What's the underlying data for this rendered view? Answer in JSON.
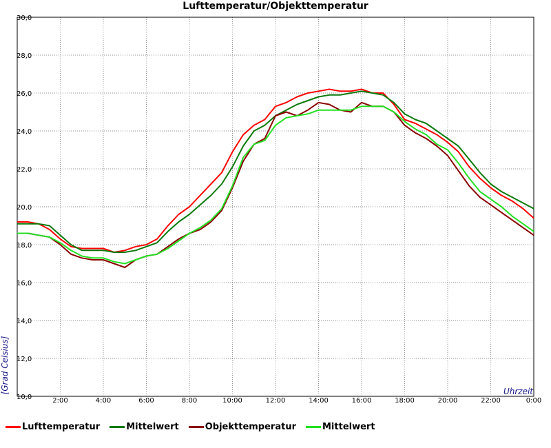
{
  "chart_data": {
    "type": "line",
    "title": "Lufttemperatur/Objekttemperatur",
    "ylabel": "[Grad Celsius]",
    "xlabel": "Uhrzeit",
    "ylim": [
      10,
      30
    ],
    "xlim": [
      0,
      24
    ],
    "y_ticks": [
      {
        "v": 10,
        "label": "10,0"
      },
      {
        "v": 12,
        "label": "12,0"
      },
      {
        "v": 14,
        "label": "14,0"
      },
      {
        "v": 16,
        "label": "16,0"
      },
      {
        "v": 18,
        "label": "18,0"
      },
      {
        "v": 20,
        "label": "20,0"
      },
      {
        "v": 22,
        "label": "22,0"
      },
      {
        "v": 24,
        "label": "24,0"
      },
      {
        "v": 26,
        "label": "26,0"
      },
      {
        "v": 28,
        "label": "28,0"
      },
      {
        "v": 30,
        "label": "30,0"
      }
    ],
    "x_ticks": [
      {
        "v": 2,
        "label": "2:00"
      },
      {
        "v": 4,
        "label": "4:00"
      },
      {
        "v": 6,
        "label": "6:00"
      },
      {
        "v": 8,
        "label": "8:00"
      },
      {
        "v": 10,
        "label": "10:00"
      },
      {
        "v": 12,
        "label": "12:00"
      },
      {
        "v": 14,
        "label": "14:00"
      },
      {
        "v": 16,
        "label": "16:00"
      },
      {
        "v": 18,
        "label": "18:00"
      },
      {
        "v": 20,
        "label": "20:00"
      },
      {
        "v": 22,
        "label": "22:00"
      },
      {
        "v": 24,
        "label": "0:00"
      }
    ],
    "grid": true,
    "legend_position": "bottom",
    "series": [
      {
        "name": "Lufttemperatur",
        "color": "#ff0000",
        "x": [
          0,
          0.5,
          1,
          1.5,
          2,
          2.5,
          3,
          3.5,
          4,
          4.5,
          5,
          5.5,
          6,
          6.5,
          7,
          7.5,
          8,
          8.5,
          9,
          9.5,
          10,
          10.5,
          11,
          11.5,
          12,
          12.5,
          13,
          13.5,
          14,
          14.5,
          15,
          15.5,
          16,
          16.5,
          17,
          17.5,
          18,
          18.5,
          19,
          19.5,
          20,
          20.5,
          21,
          21.5,
          22,
          22.5,
          23,
          23.5,
          24
        ],
        "y": [
          19.2,
          19.2,
          19.1,
          18.8,
          18.3,
          17.9,
          17.8,
          17.8,
          17.8,
          17.6,
          17.7,
          17.9,
          18.0,
          18.3,
          19.0,
          19.6,
          20.0,
          20.6,
          21.2,
          21.8,
          22.9,
          23.8,
          24.3,
          24.6,
          25.3,
          25.5,
          25.8,
          26.0,
          26.1,
          26.2,
          26.1,
          26.1,
          26.2,
          26.0,
          26.0,
          25.4,
          24.6,
          24.4,
          24.1,
          23.8,
          23.4,
          22.9,
          22.1,
          21.5,
          21.0,
          20.6,
          20.3,
          19.9,
          19.4
        ]
      },
      {
        "name": "Mittelwert",
        "color": "#0b7a0b",
        "x": [
          0,
          0.5,
          1,
          1.5,
          2,
          2.5,
          3,
          3.5,
          4,
          4.5,
          5,
          5.5,
          6,
          6.5,
          7,
          7.5,
          8,
          8.5,
          9,
          9.5,
          10,
          10.5,
          11,
          11.5,
          12,
          12.5,
          13,
          13.5,
          14,
          14.5,
          15,
          15.5,
          16,
          16.5,
          17,
          17.5,
          18,
          18.5,
          19,
          19.5,
          20,
          20.5,
          21,
          21.5,
          22,
          22.5,
          23,
          23.5,
          24
        ],
        "y": [
          19.1,
          19.1,
          19.1,
          19.0,
          18.5,
          18.0,
          17.7,
          17.7,
          17.7,
          17.6,
          17.6,
          17.7,
          17.9,
          18.1,
          18.7,
          19.2,
          19.6,
          20.1,
          20.6,
          21.2,
          22.1,
          23.2,
          24.0,
          24.3,
          24.8,
          25.1,
          25.4,
          25.6,
          25.8,
          25.9,
          25.9,
          26.0,
          26.1,
          26.0,
          25.9,
          25.5,
          24.9,
          24.6,
          24.4,
          24.0,
          23.6,
          23.2,
          22.5,
          21.8,
          21.2,
          20.8,
          20.5,
          20.2,
          19.9
        ]
      },
      {
        "name": "Objekttemperatur",
        "color": "#8b0000",
        "x": [
          0,
          0.5,
          1,
          1.5,
          2,
          2.5,
          3,
          3.5,
          4,
          4.5,
          5,
          5.5,
          6,
          6.5,
          7,
          7.5,
          8,
          8.5,
          9,
          9.5,
          10,
          10.5,
          11,
          11.5,
          12,
          12.5,
          13,
          13.5,
          14,
          14.5,
          15,
          15.5,
          16,
          16.5,
          17,
          17.5,
          18,
          18.5,
          19,
          19.5,
          20,
          20.5,
          21,
          21.5,
          22,
          22.5,
          23,
          23.5,
          24
        ],
        "y": [
          18.6,
          18.6,
          18.5,
          18.4,
          18.0,
          17.5,
          17.3,
          17.2,
          17.2,
          17.0,
          16.8,
          17.2,
          17.4,
          17.5,
          17.9,
          18.3,
          18.6,
          18.8,
          19.2,
          19.8,
          21.0,
          22.4,
          23.3,
          23.6,
          24.8,
          25.0,
          24.8,
          25.1,
          25.5,
          25.4,
          25.1,
          25.0,
          25.5,
          25.3,
          25.3,
          25.0,
          24.3,
          23.9,
          23.6,
          23.2,
          22.7,
          21.9,
          21.1,
          20.5,
          20.1,
          19.7,
          19.3,
          18.9,
          18.5
        ]
      },
      {
        "name": "Mittelwert",
        "color": "#22e022",
        "x": [
          0,
          0.5,
          1,
          1.5,
          2,
          2.5,
          3,
          3.5,
          4,
          4.5,
          5,
          5.5,
          6,
          6.5,
          7,
          7.5,
          8,
          8.5,
          9,
          9.5,
          10,
          10.5,
          11,
          11.5,
          12,
          12.5,
          13,
          13.5,
          14,
          14.5,
          15,
          15.5,
          16,
          16.5,
          17,
          17.5,
          18,
          18.5,
          19,
          19.5,
          20,
          20.5,
          21,
          21.5,
          22,
          22.5,
          23,
          23.5,
          24
        ],
        "y": [
          18.6,
          18.6,
          18.5,
          18.4,
          18.1,
          17.7,
          17.4,
          17.3,
          17.3,
          17.1,
          17.0,
          17.2,
          17.4,
          17.5,
          17.8,
          18.2,
          18.6,
          18.9,
          19.3,
          19.9,
          21.1,
          22.6,
          23.3,
          23.5,
          24.3,
          24.7,
          24.8,
          24.9,
          25.1,
          25.1,
          25.1,
          25.1,
          25.3,
          25.3,
          25.3,
          25.0,
          24.5,
          24.1,
          23.8,
          23.3,
          23.0,
          22.3,
          21.5,
          20.8,
          20.4,
          20.0,
          19.5,
          19.1,
          18.7
        ]
      }
    ]
  }
}
